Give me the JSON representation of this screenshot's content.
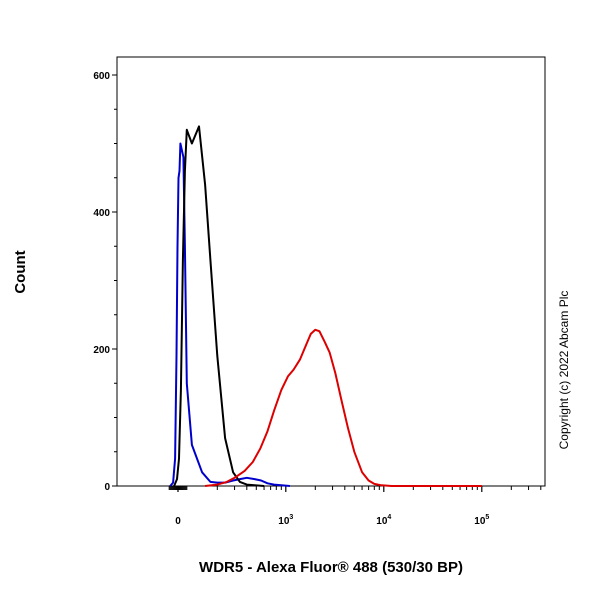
{
  "chart_data": {
    "type": "line",
    "title": "",
    "xlabel": "WDR5 - Alexa Fluor® 488 (530/30 BP)",
    "ylabel": "Count",
    "x_scale": "biexponential",
    "ylim": [
      0,
      650
    ],
    "y_ticks": [
      0,
      200,
      400,
      600
    ],
    "x_ticks": [
      {
        "value": 0,
        "label": "0",
        "exp": ""
      },
      {
        "value": 1000,
        "label": "10",
        "exp": "3"
      },
      {
        "value": 10000,
        "label": "10",
        "exp": "4"
      },
      {
        "value": 100000,
        "label": "10",
        "exp": "5"
      }
    ],
    "grid": false,
    "legend": "none",
    "series": [
      {
        "color": "#0000cc",
        "x": [
          -80,
          -50,
          -30,
          -15,
          -5,
          5,
          15,
          25,
          40,
          55,
          70,
          90,
          110,
          140,
          170,
          200,
          240,
          290,
          340,
          400,
          480,
          560,
          650,
          760,
          900,
          1100
        ],
        "y": [
          0,
          5,
          40,
          190,
          350,
          450,
          460,
          500,
          490,
          480,
          350,
          150,
          60,
          20,
          6,
          5,
          5,
          8,
          10,
          12,
          10,
          8,
          4,
          2,
          1,
          0
        ]
      },
      {
        "color": "#000000",
        "x": [
          -40,
          -10,
          10,
          30,
          50,
          70,
          90,
          110,
          130,
          150,
          170,
          200,
          240,
          290,
          340,
          400,
          480,
          600
        ],
        "y": [
          0,
          10,
          40,
          140,
          330,
          460,
          520,
          500,
          525,
          440,
          330,
          190,
          70,
          20,
          6,
          2,
          1,
          0
        ]
      },
      {
        "color": "#dd0000",
        "x": [
          150,
          200,
          250,
          300,
          380,
          460,
          550,
          650,
          760,
          900,
          1050,
          1200,
          1400,
          1600,
          1800,
          2000,
          2200,
          2500,
          2800,
          3200,
          3700,
          4300,
          5000,
          6000,
          7000,
          8000,
          9500,
          12000,
          20000,
          100000
        ],
        "y": [
          0,
          2,
          6,
          12,
          22,
          35,
          55,
          80,
          110,
          140,
          160,
          170,
          185,
          205,
          222,
          228,
          226,
          210,
          195,
          165,
          125,
          85,
          50,
          20,
          8,
          3,
          1,
          0,
          0,
          0
        ]
      }
    ]
  },
  "copyright": "Copyright (c) 2022 Abcam Plc"
}
